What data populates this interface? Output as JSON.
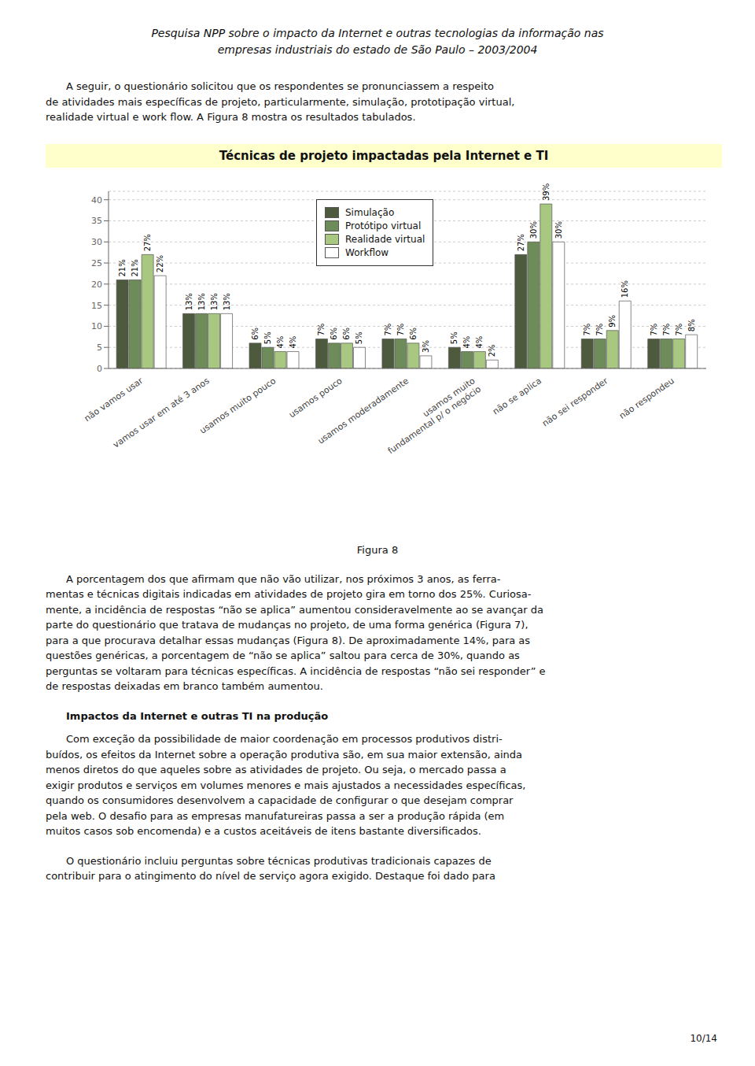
{
  "chart_data": {
    "type": "bar",
    "title": "Técnicas de projeto impactadas pela Internet e TI",
    "categories": [
      "não vamos usar",
      "vamos usar em até 3 anos",
      "usamos muito pouco",
      "usamos pouco",
      "usamos moderadamente",
      "usamos muito\nfundamental p/ o negócio",
      "não se aplica",
      "não sei responder",
      "não respondeu"
    ],
    "series": [
      {
        "name": "Simulação",
        "color": "#4d5a3e",
        "values": [
          21,
          13,
          6,
          7,
          7,
          5,
          27,
          7,
          7
        ],
        "value_labels": [
          "21%",
          "13%",
          "6%",
          "7%",
          "7%",
          "5%",
          "27%",
          "7%",
          "7%"
        ]
      },
      {
        "name": "Protótipo virtual",
        "color": "#6e8c5a",
        "values": [
          21,
          13,
          5,
          6,
          7,
          4,
          30,
          7,
          7
        ],
        "value_labels": [
          "21%",
          "13%",
          "5%",
          "6%",
          "7%",
          "4%",
          "30%",
          "7%",
          "7%"
        ]
      },
      {
        "name": "Realidade virtual",
        "color": "#a8c882",
        "values": [
          27,
          13,
          4,
          6,
          6,
          4,
          39,
          9,
          7
        ],
        "value_labels": [
          "27%",
          "13%",
          "4%",
          "6%",
          "6%",
          "4%",
          "39%",
          "9%",
          "7%"
        ]
      },
      {
        "name": "Workflow",
        "color": "#ffffff",
        "values": [
          22,
          13,
          4,
          5,
          3,
          2,
          30,
          16,
          8
        ],
        "value_labels": [
          "22%",
          "13%",
          "4%",
          "5%",
          "3%",
          "2%",
          "30%",
          "16%",
          "8%"
        ]
      }
    ],
    "ylim": [
      0,
      42
    ],
    "yticks": [
      0,
      5,
      10,
      15,
      20,
      25,
      30,
      35,
      40
    ],
    "grid": true,
    "legend": "upper center",
    "data_labels": true,
    "annotations": [
      "Pesquisa NPP sobre o impacto da Internet e outras tecnologias da informação nas",
      "empresas industriais do estado de São Paulo – 2003/2004",
      "A seguir, o questionário solicitou que os respondentes se pronunciassem a respeito\nde atividades mais específicas de projeto, particularmente, simulação, prototipação virtual,\nrealidade virtual e work flow. A Figura 8 mostra os resultados tabulados.",
      "Figura 8",
      "A porcentagem dos que afirmam que não vão utilizar, nos próximos 3 anos, as ferra-\nmentas e técnicas digitais indicadas em atividades de projeto gira em torno dos 25%. Curiosa-\nmente, a incidência de respostas “não se aplica” aumentou consideravelmente ao se avançar da\nparte do questionário que tratava de mudanças no projeto, de uma forma genérica (Figura 7),\npara a que procurava detalhar essas mudanças (Figura 8). De aproximadamente 14%, para as\nquestões genéricas, a porcentagem de “não se aplica” saltou para cerca de 30%, quando as\nperguntas se voltaram para técnicas específicas. A incidência de respostas “não sei responder” e\nde respostas deixadas em branco também aumentou.",
      "Impactos da Internet e outras TI na produção",
      "Com exceção da possibilidade de maior coordenação em processos produtivos distri-\nbuídos, os efeitos da Internet sobre a operação produtiva são, em sua maior extensão, ainda\nmenos diretos do que aqueles sobre as atividades de projeto. Ou seja, o mercado passa a\nexigir produtos e serviços em volumes menores e mais ajustados a necessidades específicas,\nquando os consumidores desenvolvem a capacidade de configurar o que desejam comprar\npela web. O desafio para as empresas manufatureiras passa a ser a produção rápida (em\nmuitos casos sob encomenda) e a custos aceitáveis de itens bastante diversificados.",
      "O questionário incluiu perguntas sobre técnicas produtivas tradicionais capazes de\ncontribuir para o atingimento do nível de serviço agora exigido. Destaque foi dado para",
      "10/14"
    ]
  }
}
